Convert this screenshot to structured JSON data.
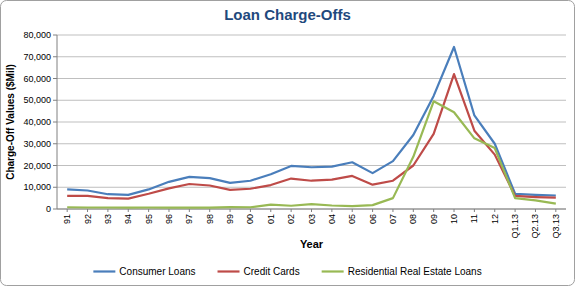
{
  "chart_data": {
    "type": "line",
    "title": "Loan Charge-Offs",
    "x_label": "Year",
    "y_label": "Charge-Off Values ($Mil)",
    "categories": [
      "91",
      "92",
      "93",
      "94",
      "95",
      "96",
      "97",
      "98",
      "99",
      "00",
      "01",
      "02",
      "03",
      "04",
      "05",
      "06",
      "07",
      "08",
      "09",
      "10",
      "11",
      "12",
      "Q1.13",
      "Q2.13",
      "Q3.13"
    ],
    "series": [
      {
        "name": "Consumer Loans",
        "color": "#4a7ebb",
        "values": [
          9000,
          8500,
          6800,
          6500,
          9000,
          12500,
          14800,
          14200,
          12000,
          13000,
          16000,
          19800,
          19200,
          19500,
          21500,
          16500,
          22000,
          34000,
          52000,
          74500,
          43000,
          30000,
          7000,
          6500,
          6200
        ]
      },
      {
        "name": "Credit Cards",
        "color": "#be4b48",
        "values": [
          6000,
          6000,
          5000,
          4800,
          7000,
          9500,
          11500,
          10800,
          8800,
          9300,
          11000,
          14000,
          13000,
          13500,
          15200,
          11200,
          13000,
          20000,
          34500,
          62000,
          36000,
          25000,
          6000,
          5500,
          5200
        ]
      },
      {
        "name": "Residential Real Estate Loans",
        "color": "#98b954",
        "values": [
          800,
          700,
          700,
          600,
          700,
          600,
          600,
          600,
          900,
          800,
          2000,
          1500,
          2200,
          1600,
          1300,
          1800,
          5000,
          24000,
          49500,
          44500,
          32500,
          28000,
          5000,
          4000,
          2500
        ]
      }
    ],
    "ylim": [
      0,
      80000
    ],
    "yticks": [
      0,
      {
        "value": 10000,
        "label": "10,000"
      },
      {
        "value": 20000,
        "label": "20,000"
      },
      {
        "value": 30000,
        "label": "30,000"
      },
      {
        "value": 40000,
        "label": "40,000"
      },
      {
        "value": 50000,
        "label": "50,000"
      },
      {
        "value": 60000,
        "label": "60,000"
      },
      {
        "value": 70000,
        "label": "70,000"
      },
      {
        "value": 80000,
        "label": "80,000"
      }
    ],
    "grid": true,
    "legend": "bottom"
  }
}
